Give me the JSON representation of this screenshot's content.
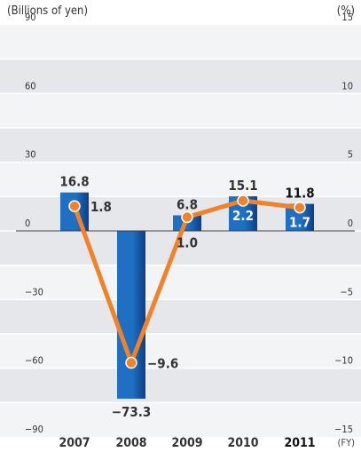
{
  "chart_data": {
    "type": "bar",
    "left_axis_unit": "(Billions of yen)",
    "right_axis_unit": "(%)",
    "x_axis_unit": "(FY)",
    "categories": [
      "2007",
      "2008",
      "2009",
      "2010",
      "2011"
    ],
    "highlighted_category": "2011",
    "series": [
      {
        "type": "bar",
        "axis": "left",
        "values": [
          16.8,
          -73.3,
          6.8,
          15.1,
          11.8
        ],
        "labels": [
          "16.8",
          "−73.3",
          "6.8",
          "15.1",
          "11.8"
        ]
      },
      {
        "type": "line",
        "axis": "right",
        "values": [
          1.8,
          -9.6,
          1.0,
          2.2,
          1.7
        ],
        "labels": [
          "1.8",
          "−9.6",
          "1.0",
          "2.2",
          "1.7"
        ]
      }
    ],
    "ylim_left": [
      -90,
      90
    ],
    "ylim_right": [
      -15,
      15
    ],
    "left_ticks": [
      "90",
      "60",
      "30",
      "0",
      "−30",
      "−60",
      "−90"
    ],
    "right_ticks": [
      "15",
      "10",
      "5",
      "0",
      "−5",
      "−10",
      "−15"
    ],
    "grid": true,
    "colors": {
      "bar": "#1f6fc2",
      "bar_dark": "#0b3f86",
      "line": "#f0822a",
      "band_dark": "#e6e7eb",
      "band_light": "#f3f4f6",
      "gridline": "#ffffff",
      "baseline": "#3a3a3a"
    }
  }
}
